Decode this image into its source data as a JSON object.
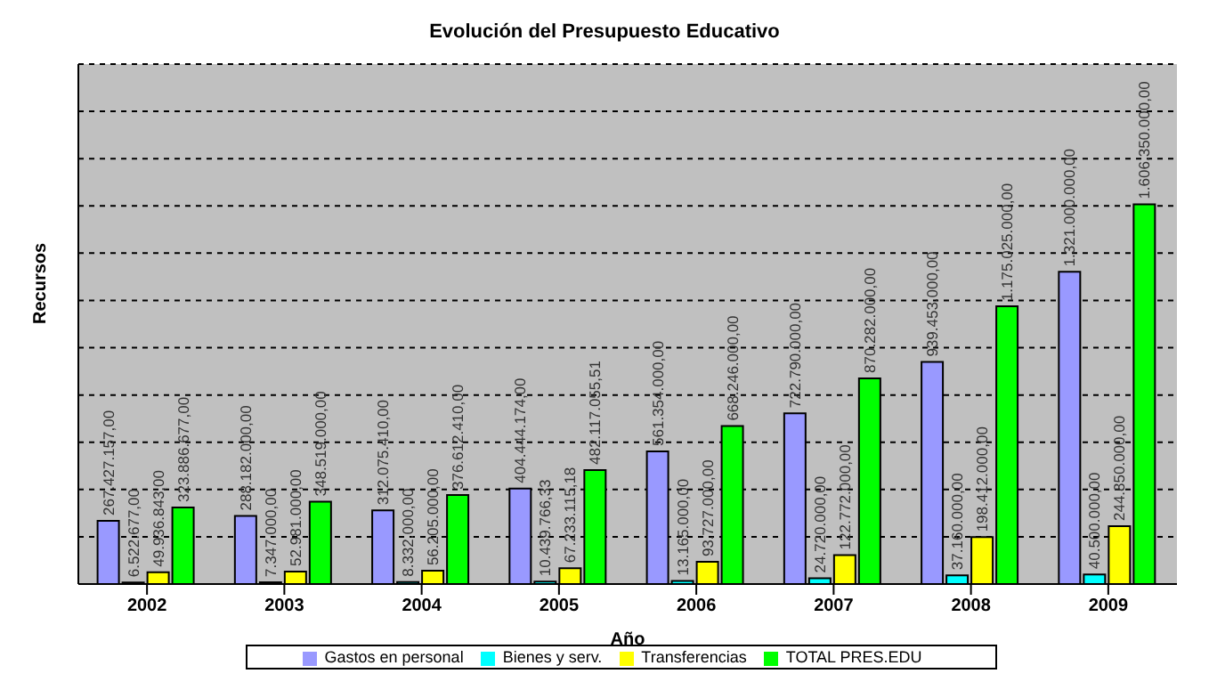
{
  "chart_data": {
    "type": "bar",
    "title": "Evolución del Presupuesto Educativo",
    "xlabel": "Año",
    "ylabel": "Recursos",
    "categories": [
      "2002",
      "2003",
      "2004",
      "2005",
      "2006",
      "2007",
      "2008",
      "2009"
    ],
    "series": [
      {
        "name": "Gastos en personal",
        "color": "#9999ff",
        "values": [
          267427157,
          288182000,
          312075410,
          404444174,
          561354000,
          722790000,
          939453000,
          1321000000
        ],
        "value_labels": [
          "267.427.157,00",
          "288.182.000,00",
          "312.075.410,00",
          "404.444.174,00",
          "561.354.000,00",
          "722.790.000,00",
          "939.453.000,00",
          "1.321.000.000,00"
        ]
      },
      {
        "name": "Bienes y serv.",
        "color": "#00ffff",
        "values": [
          6522677,
          7347000,
          8332000,
          10439766.33,
          13165000,
          24720000,
          37160000,
          40500000
        ],
        "value_labels": [
          "6.522.677,00",
          "7.347.000,00",
          "8.332.000,00",
          "10.439.766,33",
          "13.165.000,00",
          "24.720.000,00",
          "37.160.000,00",
          "40.500.000,00"
        ]
      },
      {
        "name": "Transferencias",
        "color": "#ffff00",
        "values": [
          49936843,
          52981000,
          56205000,
          67233115.18,
          93727000,
          122772000,
          198412000,
          244850000
        ],
        "value_labels": [
          "49.936.843,00",
          "52.981.000,00",
          "56.205.000,00",
          "67.233.115,18",
          "93.727.000,00",
          "122.772.000,00",
          "198.412.000,00",
          "244.850.000,00"
        ]
      },
      {
        "name": "TOTAL PRES.EDU",
        "color": "#00ff00",
        "values": [
          323886677,
          348519000,
          376612410,
          482117055.51,
          668246000,
          870282000,
          1175025000,
          1606350000
        ],
        "value_labels": [
          "323.886.677,00",
          "348.519.000,00",
          "376.612.410,00",
          "482.117.055,51",
          "668.246.000,00",
          "870.282.000,00",
          "1.175.025.000,00",
          "1.606.350.000,00"
        ]
      }
    ],
    "ylim": [
      0,
      2200000000
    ],
    "tick_labels": "x",
    "grid": "y",
    "legend": "bottom"
  }
}
